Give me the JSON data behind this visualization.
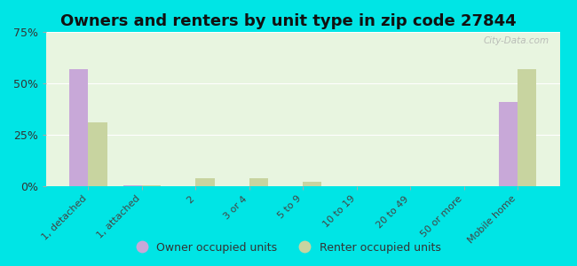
{
  "title": "Owners and renters by unit type in zip code 27844",
  "categories": [
    "1, detached",
    "1, attached",
    "2",
    "3 or 4",
    "5 to 9",
    "10 to 19",
    "20 to 49",
    "50 or more",
    "Mobile home"
  ],
  "owner_values": [
    57,
    0.5,
    0,
    0,
    0,
    0,
    0,
    0,
    41
  ],
  "renter_values": [
    31,
    0.5,
    4,
    4,
    2,
    0,
    0,
    0,
    57
  ],
  "owner_color": "#c8a8d8",
  "renter_color": "#c8d4a0",
  "background_color": "#e8f5e0",
  "outer_background": "#00e5e5",
  "ylim": [
    0,
    75
  ],
  "yticks": [
    0,
    25,
    50,
    75
  ],
  "ytick_labels": [
    "0%",
    "25%",
    "50%",
    "75%"
  ],
  "legend_owner": "Owner occupied units",
  "legend_renter": "Renter occupied units",
  "bar_width": 0.35,
  "title_fontsize": 13
}
